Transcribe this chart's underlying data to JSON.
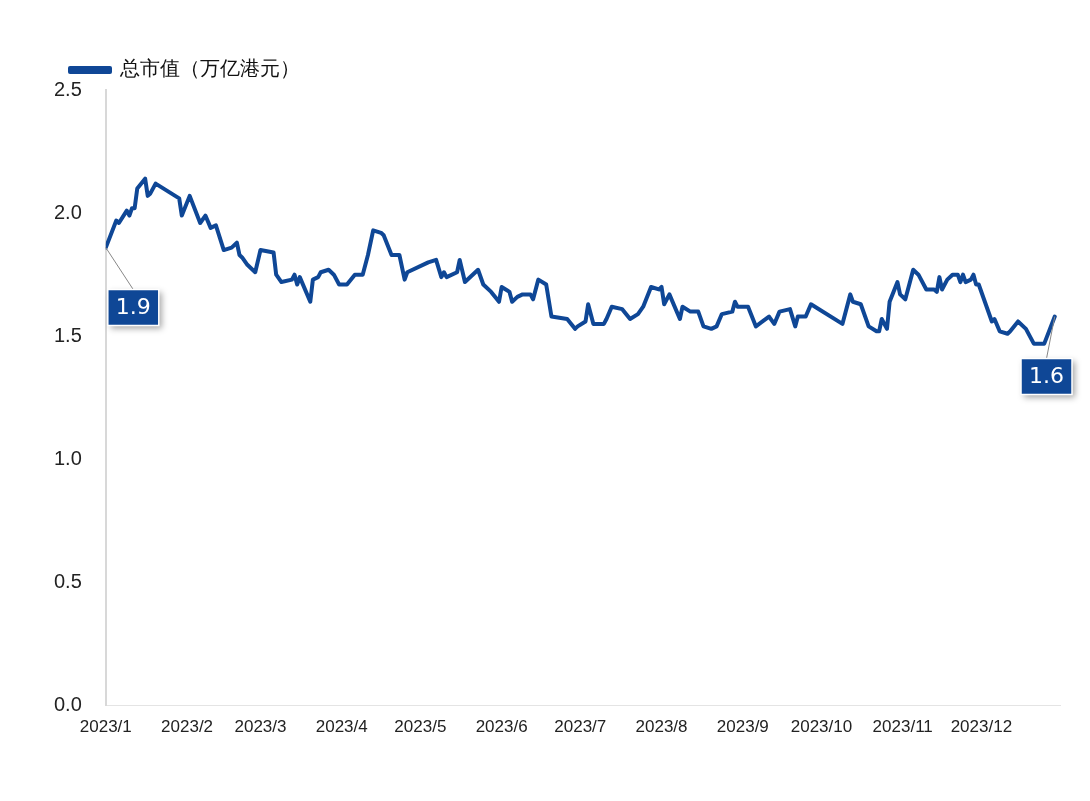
{
  "chart_data": {
    "type": "line",
    "legend": "top left",
    "grid": false,
    "marker": "none",
    "line_style": "solid",
    "ylim": [
      0,
      2.5
    ],
    "yticks": [
      {
        "value": 0,
        "label": "0.0"
      },
      {
        "value": 0.5,
        "label": "0.5"
      },
      {
        "value": 1,
        "label": "1.0"
      },
      {
        "value": 1.5,
        "label": "1.5"
      },
      {
        "value": 2,
        "label": "2.0"
      },
      {
        "value": 2.5,
        "label": "2.5"
      }
    ],
    "xlim": [
      "2023-01-01",
      "2023-12-31"
    ],
    "xticks": [
      {
        "value": "2023-01-01",
        "label": "2023/1"
      },
      {
        "value": "2023-02-01",
        "label": "2023/2"
      },
      {
        "value": "2023-03-01",
        "label": "2023/3"
      },
      {
        "value": "2023-04-01",
        "label": "2023/4"
      },
      {
        "value": "2023-05-01",
        "label": "2023/5"
      },
      {
        "value": "2023-06-01",
        "label": "2023/6"
      },
      {
        "value": "2023-07-01",
        "label": "2023/7"
      },
      {
        "value": "2023-08-01",
        "label": "2023/8"
      },
      {
        "value": "2023-09-01",
        "label": "2023/9"
      },
      {
        "value": "2023-10-01",
        "label": "2023/10"
      },
      {
        "value": "2023-11-01",
        "label": "2023/11"
      },
      {
        "value": "2023-12-01",
        "label": "2023/12"
      }
    ],
    "x": [
      "2023-01-01",
      "2023-01-05",
      "2023-01-06",
      "2023-01-09",
      "2023-01-10",
      "2023-01-11",
      "2023-01-12",
      "2023-01-13",
      "2023-01-16",
      "2023-01-17",
      "2023-01-18",
      "2023-01-20",
      "2023-01-29",
      "2023-01-30",
      "2023-02-02",
      "2023-02-06",
      "2023-02-08",
      "2023-02-10",
      "2023-02-12",
      "2023-02-15",
      "2023-02-18",
      "2023-02-20",
      "2023-02-21",
      "2023-02-22",
      "2023-02-24",
      "2023-02-27",
      "2023-03-01",
      "2023-03-06",
      "2023-03-07",
      "2023-03-09",
      "2023-03-13",
      "2023-03-14",
      "2023-03-15",
      "2023-03-16",
      "2023-03-20",
      "2023-03-21",
      "2023-03-23",
      "2023-03-24",
      "2023-03-27",
      "2023-03-29",
      "2023-03-31",
      "2023-04-03",
      "2023-04-06",
      "2023-04-09",
      "2023-04-11",
      "2023-04-13",
      "2023-04-16",
      "2023-04-17",
      "2023-04-20",
      "2023-04-23",
      "2023-04-25",
      "2023-04-26",
      "2023-05-04",
      "2023-05-07",
      "2023-05-09",
      "2023-05-10",
      "2023-05-11",
      "2023-05-15",
      "2023-05-16",
      "2023-05-18",
      "2023-05-23",
      "2023-05-25",
      "2023-05-28",
      "2023-05-31",
      "2023-06-01",
      "2023-06-04",
      "2023-06-05",
      "2023-06-07",
      "2023-06-09",
      "2023-06-12",
      "2023-06-13",
      "2023-06-15",
      "2023-06-18",
      "2023-06-20",
      "2023-06-26",
      "2023-06-29",
      "2023-06-30",
      "2023-07-03",
      "2023-07-04",
      "2023-07-06",
      "2023-07-10",
      "2023-07-11",
      "2023-07-13",
      "2023-07-17",
      "2023-07-20",
      "2023-07-23",
      "2023-07-25",
      "2023-07-28",
      "2023-07-31",
      "2023-08-01",
      "2023-08-02",
      "2023-08-04",
      "2023-08-08",
      "2023-08-09",
      "2023-08-12",
      "2023-08-15",
      "2023-08-17",
      "2023-08-20",
      "2023-08-22",
      "2023-08-24",
      "2023-08-28",
      "2023-08-29",
      "2023-08-30",
      "2023-09-03",
      "2023-09-06",
      "2023-09-11",
      "2023-09-13",
      "2023-09-15",
      "2023-09-19",
      "2023-09-21",
      "2023-09-22",
      "2023-09-25",
      "2023-09-27",
      "2023-10-09",
      "2023-10-12",
      "2023-10-13",
      "2023-10-16",
      "2023-10-19",
      "2023-10-22",
      "2023-10-23",
      "2023-10-24",
      "2023-10-26",
      "2023-10-27",
      "2023-10-30",
      "2023-10-31",
      "2023-11-02",
      "2023-11-05",
      "2023-11-07",
      "2023-11-10",
      "2023-11-13",
      "2023-11-14",
      "2023-11-15",
      "2023-11-16",
      "2023-11-18",
      "2023-11-20",
      "2023-11-22",
      "2023-11-23",
      "2023-11-24",
      "2023-11-25",
      "2023-11-27",
      "2023-11-28",
      "2023-11-29",
      "2023-11-30",
      "2023-12-05",
      "2023-12-06",
      "2023-12-08",
      "2023-12-11",
      "2023-12-12",
      "2023-12-15",
      "2023-12-18",
      "2023-12-21",
      "2023-12-25",
      "2023-12-29"
    ],
    "series": [
      {
        "name": "总市值（万亿港元）",
        "color": "#0f4796",
        "values": [
          1.86,
          1.97,
          1.96,
          2.01,
          1.99,
          2.02,
          2.02,
          2.1,
          2.14,
          2.07,
          2.08,
          2.12,
          2.06,
          1.99,
          2.07,
          1.96,
          1.99,
          1.94,
          1.95,
          1.85,
          1.86,
          1.88,
          1.83,
          1.82,
          1.79,
          1.76,
          1.85,
          1.84,
          1.75,
          1.72,
          1.73,
          1.75,
          1.71,
          1.74,
          1.64,
          1.73,
          1.74,
          1.76,
          1.77,
          1.75,
          1.71,
          1.71,
          1.75,
          1.75,
          1.83,
          1.93,
          1.92,
          1.91,
          1.83,
          1.83,
          1.73,
          1.76,
          1.8,
          1.81,
          1.74,
          1.76,
          1.74,
          1.76,
          1.81,
          1.72,
          1.77,
          1.71,
          1.68,
          1.64,
          1.7,
          1.68,
          1.64,
          1.66,
          1.67,
          1.67,
          1.65,
          1.73,
          1.71,
          1.58,
          1.57,
          1.53,
          1.54,
          1.56,
          1.63,
          1.55,
          1.55,
          1.57,
          1.62,
          1.61,
          1.57,
          1.59,
          1.62,
          1.7,
          1.69,
          1.7,
          1.63,
          1.67,
          1.57,
          1.62,
          1.6,
          1.6,
          1.54,
          1.53,
          1.54,
          1.59,
          1.6,
          1.64,
          1.62,
          1.62,
          1.54,
          1.58,
          1.55,
          1.6,
          1.61,
          1.54,
          1.58,
          1.58,
          1.63,
          1.55,
          1.67,
          1.64,
          1.63,
          1.54,
          1.52,
          1.52,
          1.57,
          1.53,
          1.64,
          1.72,
          1.67,
          1.65,
          1.77,
          1.75,
          1.69,
          1.69,
          1.68,
          1.74,
          1.69,
          1.73,
          1.75,
          1.75,
          1.72,
          1.75,
          1.72,
          1.73,
          1.75,
          1.71,
          1.71,
          1.56,
          1.57,
          1.52,
          1.51,
          1.52,
          1.56,
          1.53,
          1.47,
          1.47,
          1.58
        ],
        "value_labels": [
          "1.9",
          null,
          null,
          null,
          null,
          null,
          null,
          null,
          null,
          null,
          null,
          null,
          null,
          null,
          null,
          null,
          null,
          null,
          null,
          null,
          null,
          null,
          null,
          null,
          null,
          null,
          null,
          null,
          null,
          null,
          null,
          null,
          null,
          null,
          null,
          null,
          null,
          null,
          null,
          null,
          null,
          null,
          null,
          null,
          null,
          null,
          null,
          null,
          null,
          null,
          null,
          null,
          null,
          null,
          null,
          null,
          null,
          null,
          null,
          null,
          null,
          null,
          null,
          null,
          null,
          null,
          null,
          null,
          null,
          null,
          null,
          null,
          null,
          null,
          null,
          null,
          null,
          null,
          null,
          null,
          null,
          null,
          null,
          null,
          null,
          null,
          null,
          null,
          null,
          null,
          null,
          null,
          null,
          null,
          null,
          null,
          null,
          null,
          null,
          null,
          null,
          null,
          null,
          null,
          null,
          null,
          null,
          null,
          null,
          null,
          null,
          null,
          null,
          null,
          null,
          null,
          null,
          null,
          null,
          null,
          null,
          null,
          null,
          null,
          null,
          null,
          null,
          null,
          null,
          null,
          null,
          null,
          null,
          null,
          null,
          null,
          null,
          null,
          null,
          null,
          null,
          null,
          null,
          null,
          null,
          null,
          null,
          null,
          null,
          null,
          null,
          null,
          "1.6"
        ]
      }
    ]
  }
}
